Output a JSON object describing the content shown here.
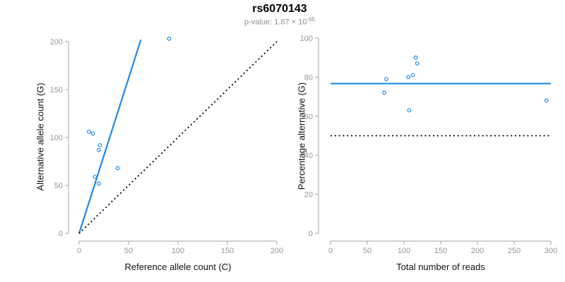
{
  "header": {
    "title": "rs6070143",
    "pvalue_text": "p-value: 1.87 × 10",
    "pvalue_exponent": "-65"
  },
  "colors": {
    "accent": "#1e8ae8",
    "black": "#000000",
    "axis_line": "#a6a6a6",
    "tick_label": "#969696",
    "subtitle": "#8f8f8f",
    "axis_title": "#111111",
    "background": "#ffffff"
  },
  "chart_data": [
    {
      "type": "scatter",
      "name": "allele-counts-scatter",
      "title": "",
      "xlabel": "Reference allele count (C)",
      "ylabel": "Alternative allele count (G)",
      "xlim": [
        0,
        200
      ],
      "ylim": [
        0,
        200
      ],
      "xticks": [
        0,
        50,
        100,
        150,
        200
      ],
      "yticks": [
        0,
        50,
        100,
        150,
        200
      ],
      "grid": false,
      "legend": "none",
      "points": [
        [
          10,
          106
        ],
        [
          14,
          104
        ],
        [
          21,
          92
        ],
        [
          20,
          87
        ],
        [
          16,
          59
        ],
        [
          20,
          52
        ],
        [
          39,
          68
        ],
        [
          91,
          203
        ]
      ],
      "lines": [
        {
          "name": "fitted-allelic-ratio-line",
          "style": "solid",
          "color": "accent",
          "from": [
            0,
            0
          ],
          "to": [
            62.5,
            202
          ]
        },
        {
          "name": "identity-line",
          "style": "dotted",
          "color": "black",
          "from": [
            0,
            0
          ],
          "to": [
            200,
            200
          ]
        }
      ]
    },
    {
      "type": "scatter",
      "name": "percentage-vs-coverage-scatter",
      "title": "",
      "xlabel": "Total number of reads",
      "ylabel": "Percentage alternative (G)",
      "xlim": [
        0,
        300
      ],
      "ylim": [
        0,
        100
      ],
      "xticks": [
        0,
        50,
        100,
        150,
        200,
        250,
        300
      ],
      "yticks": [
        0,
        20,
        40,
        60,
        80,
        100
      ],
      "grid": false,
      "legend": "none",
      "points": [
        [
          73,
          72
        ],
        [
          76,
          79
        ],
        [
          106,
          80
        ],
        [
          107,
          63
        ],
        [
          112,
          81
        ],
        [
          116,
          90
        ],
        [
          118,
          87
        ],
        [
          294,
          68
        ]
      ],
      "lines": [
        {
          "name": "mean-percentage-line",
          "style": "solid",
          "color": "accent",
          "y": 76.7
        },
        {
          "name": "fifty-percent-line",
          "style": "dotted",
          "color": "black",
          "y": 50
        }
      ]
    }
  ]
}
